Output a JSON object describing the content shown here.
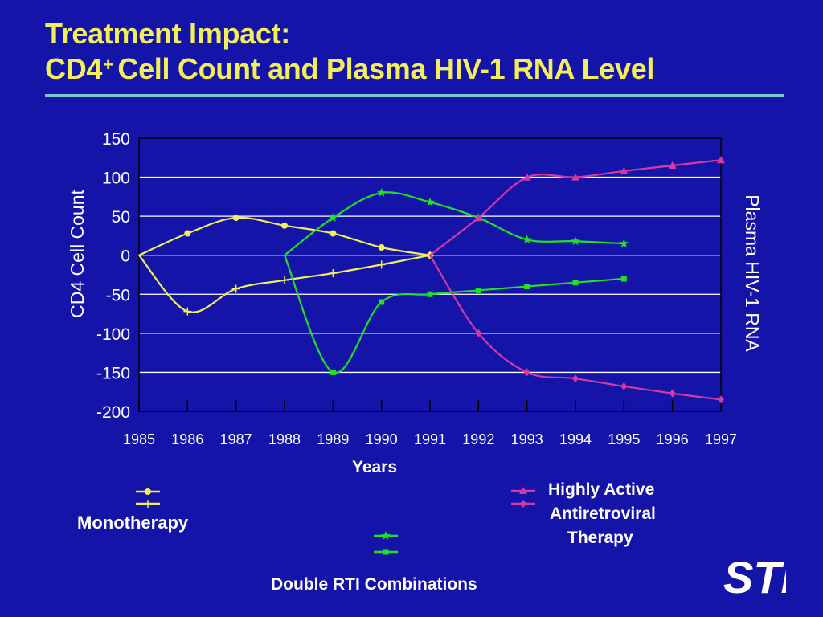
{
  "title": {
    "line1": "Treatment Impact:",
    "line2_pre": "CD4",
    "line2_sup": "+",
    "line2_post": " Cell Count and Plasma HIV-1 RNA Level"
  },
  "colors": {
    "background": "#1414a8",
    "title": "#f2ef5a",
    "rule": "#7ec8cf",
    "mono": "#f2ef5a",
    "double": "#22e022",
    "haart": "#d63aa0",
    "text": "#ffffff"
  },
  "logo": {
    "text": "STI"
  },
  "legend": {
    "monotherapy": "Monotherapy",
    "double_rti": "Double RTI Combinations",
    "haart_line1": "Highly Active",
    "haart_line2": "Antiretroviral",
    "haart_line3": "Therapy"
  },
  "chart_data": {
    "type": "line",
    "xlabel": "Years",
    "ylabel_left": "CD4 Cell Count",
    "ylabel_right": "Plasma HIV-1 RNA",
    "xlim": [
      1985,
      1997
    ],
    "ylim": [
      -200,
      150
    ],
    "x_ticks": [
      "1985",
      "1986",
      "1987",
      "1988",
      "1989",
      "1990",
      "1991",
      "1992",
      "1993",
      "1994",
      "1995",
      "1996",
      "1997"
    ],
    "y_ticks": [
      "150",
      "100",
      "50",
      "0",
      "-50",
      "-100",
      "-150",
      "-200"
    ],
    "grid": true,
    "series": [
      {
        "group": "Monotherapy",
        "marker": "circle",
        "color": "#f2ef5a",
        "x": [
          1985,
          1986,
          1987,
          1988,
          1989,
          1990,
          1991
        ],
        "y": [
          0,
          28,
          48,
          38,
          28,
          10,
          0
        ]
      },
      {
        "group": "Monotherapy",
        "marker": "plus",
        "color": "#f2ef5a",
        "x": [
          1985,
          1986,
          1987,
          1988,
          1989,
          1990,
          1991
        ],
        "y": [
          0,
          -72,
          -43,
          -32,
          -23,
          -12,
          0
        ]
      },
      {
        "group": "Double RTI Combinations",
        "marker": "star",
        "color": "#22e022",
        "x": [
          1988,
          1989,
          1990,
          1991,
          1992,
          1993,
          1994,
          1995
        ],
        "y": [
          0,
          48,
          80,
          68,
          48,
          20,
          18,
          15
        ]
      },
      {
        "group": "Double RTI Combinations",
        "marker": "square",
        "color": "#22e022",
        "x": [
          1988,
          1989,
          1990,
          1991,
          1992,
          1993,
          1994,
          1995
        ],
        "y": [
          0,
          -150,
          -60,
          -50,
          -45,
          -40,
          -35,
          -30
        ]
      },
      {
        "group": "Highly Active Antiretroviral Therapy",
        "marker": "triangle",
        "color": "#d63aa0",
        "x": [
          1991,
          1992,
          1993,
          1994,
          1995,
          1996,
          1997
        ],
        "y": [
          0,
          48,
          100,
          100,
          108,
          115,
          122
        ]
      },
      {
        "group": "Highly Active Antiretroviral Therapy",
        "marker": "diamond",
        "color": "#d63aa0",
        "x": [
          1991,
          1992,
          1993,
          1994,
          1995,
          1996,
          1997
        ],
        "y": [
          0,
          -100,
          -150,
          -158,
          -168,
          -177,
          -185
        ]
      }
    ]
  }
}
